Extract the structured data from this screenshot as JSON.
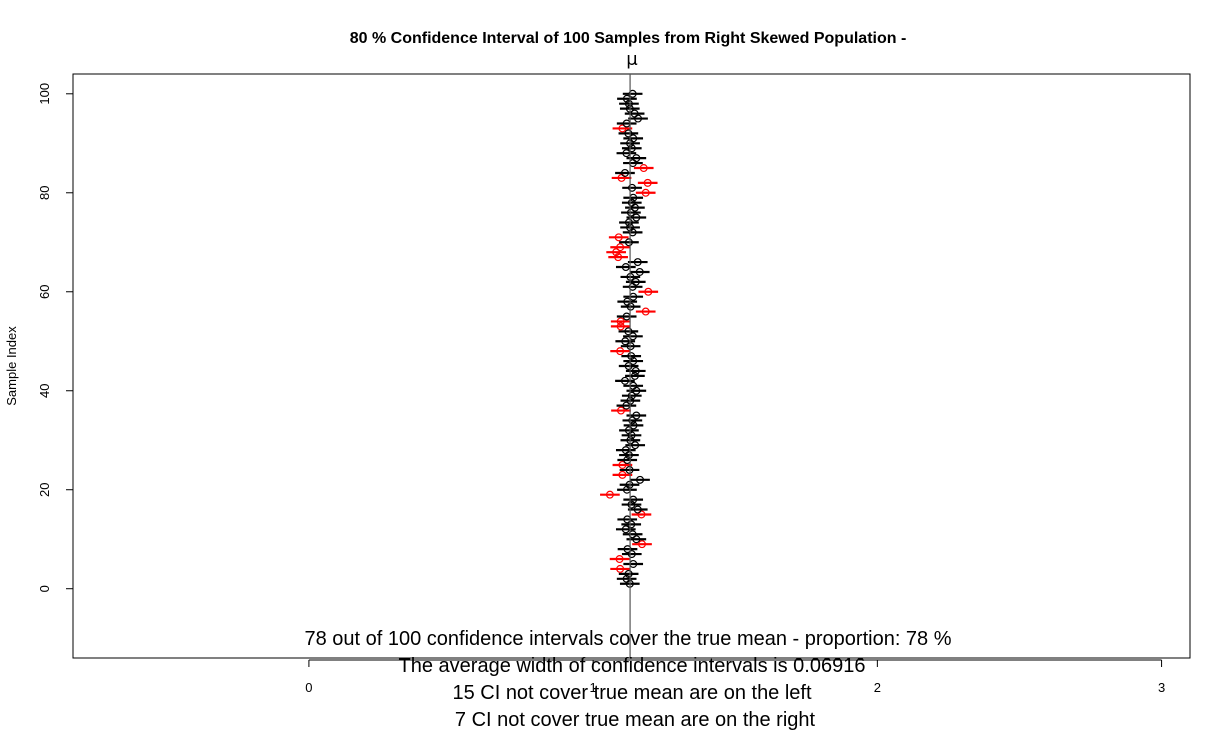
{
  "chart_data": {
    "type": "scatter",
    "title": "80 % Confidence Interval of 100  Samples from Right Skewed Population -",
    "title_symbol": "μ",
    "ylabel": "Sample Index",
    "xlabel": "",
    "true_mean": 1.13,
    "xlim": [
      -0.83,
      3.1
    ],
    "ylim": [
      -14,
      104
    ],
    "x_ticks": [
      "0",
      "1",
      "2",
      "3"
    ],
    "y_ticks": [
      "0",
      "20",
      "40",
      "60",
      "80",
      "100"
    ],
    "grid": false,
    "colors": {
      "covers": "#000000",
      "misses": "#ff0000",
      "true_mean_line": "#555555"
    },
    "annotations": [
      "78 out of 100 confidence intervals cover the true mean - proportion: 78 %",
      "The average width of confidence intervals is 0.06916",
      "15 CI not cover true mean are on the left",
      "7 CI not cover true mean are on the right"
    ],
    "intervals": [
      {
        "index": 1,
        "mean": 1.129,
        "covers": true
      },
      {
        "index": 2,
        "mean": 1.118,
        "covers": true
      },
      {
        "index": 3,
        "mean": 1.125,
        "covers": true
      },
      {
        "index": 4,
        "mean": 1.095,
        "covers": false
      },
      {
        "index": 5,
        "mean": 1.141,
        "covers": true
      },
      {
        "index": 6,
        "mean": 1.093,
        "covers": false
      },
      {
        "index": 7,
        "mean": 1.136,
        "covers": true
      },
      {
        "index": 8,
        "mean": 1.121,
        "covers": true
      },
      {
        "index": 9,
        "mean": 1.172,
        "covers": false
      },
      {
        "index": 10,
        "mean": 1.152,
        "covers": true
      },
      {
        "index": 11,
        "mean": 1.139,
        "covers": true
      },
      {
        "index": 12,
        "mean": 1.115,
        "covers": true
      },
      {
        "index": 13,
        "mean": 1.134,
        "covers": true
      },
      {
        "index": 14,
        "mean": 1.12,
        "covers": true
      },
      {
        "index": 15,
        "mean": 1.17,
        "covers": false
      },
      {
        "index": 16,
        "mean": 1.157,
        "covers": true
      },
      {
        "index": 17,
        "mean": 1.135,
        "covers": true
      },
      {
        "index": 18,
        "mean": 1.141,
        "covers": true
      },
      {
        "index": 19,
        "mean": 1.059,
        "covers": false
      },
      {
        "index": 20,
        "mean": 1.119,
        "covers": true
      },
      {
        "index": 21,
        "mean": 1.128,
        "covers": true
      },
      {
        "index": 22,
        "mean": 1.165,
        "covers": true
      },
      {
        "index": 23,
        "mean": 1.103,
        "covers": false
      },
      {
        "index": 24,
        "mean": 1.128,
        "covers": true
      },
      {
        "index": 25,
        "mean": 1.103,
        "covers": false
      },
      {
        "index": 26,
        "mean": 1.12,
        "covers": true
      },
      {
        "index": 27,
        "mean": 1.126,
        "covers": true
      },
      {
        "index": 28,
        "mean": 1.115,
        "covers": true
      },
      {
        "index": 29,
        "mean": 1.148,
        "covers": true
      },
      {
        "index": 30,
        "mean": 1.131,
        "covers": true
      },
      {
        "index": 31,
        "mean": 1.135,
        "covers": true
      },
      {
        "index": 32,
        "mean": 1.126,
        "covers": true
      },
      {
        "index": 33,
        "mean": 1.142,
        "covers": true
      },
      {
        "index": 34,
        "mean": 1.138,
        "covers": true
      },
      {
        "index": 35,
        "mean": 1.152,
        "covers": true
      },
      {
        "index": 36,
        "mean": 1.098,
        "covers": false
      },
      {
        "index": 37,
        "mean": 1.117,
        "covers": true
      },
      {
        "index": 38,
        "mean": 1.131,
        "covers": true
      },
      {
        "index": 39,
        "mean": 1.136,
        "covers": true
      },
      {
        "index": 40,
        "mean": 1.152,
        "covers": true
      },
      {
        "index": 41,
        "mean": 1.141,
        "covers": true
      },
      {
        "index": 42,
        "mean": 1.112,
        "covers": true
      },
      {
        "index": 43,
        "mean": 1.147,
        "covers": true
      },
      {
        "index": 44,
        "mean": 1.15,
        "covers": true
      },
      {
        "index": 45,
        "mean": 1.125,
        "covers": true
      },
      {
        "index": 46,
        "mean": 1.141,
        "covers": true
      },
      {
        "index": 47,
        "mean": 1.134,
        "covers": true
      },
      {
        "index": 48,
        "mean": 1.095,
        "covers": false
      },
      {
        "index": 49,
        "mean": 1.132,
        "covers": true
      },
      {
        "index": 50,
        "mean": 1.113,
        "covers": true
      },
      {
        "index": 51,
        "mean": 1.14,
        "covers": true
      },
      {
        "index": 52,
        "mean": 1.124,
        "covers": true
      },
      {
        "index": 53,
        "mean": 1.097,
        "covers": false
      },
      {
        "index": 54,
        "mean": 1.097,
        "covers": false
      },
      {
        "index": 55,
        "mean": 1.118,
        "covers": true
      },
      {
        "index": 56,
        "mean": 1.185,
        "covers": false
      },
      {
        "index": 57,
        "mean": 1.132,
        "covers": true
      },
      {
        "index": 58,
        "mean": 1.12,
        "covers": true
      },
      {
        "index": 59,
        "mean": 1.141,
        "covers": true
      },
      {
        "index": 60,
        "mean": 1.194,
        "covers": false
      },
      {
        "index": 61,
        "mean": 1.139,
        "covers": true
      },
      {
        "index": 62,
        "mean": 1.15,
        "covers": true
      },
      {
        "index": 63,
        "mean": 1.131,
        "covers": true
      },
      {
        "index": 64,
        "mean": 1.164,
        "covers": true
      },
      {
        "index": 65,
        "mean": 1.115,
        "covers": true
      },
      {
        "index": 66,
        "mean": 1.157,
        "covers": true
      },
      {
        "index": 67,
        "mean": 1.088,
        "covers": false
      },
      {
        "index": 68,
        "mean": 1.081,
        "covers": false
      },
      {
        "index": 69,
        "mean": 1.095,
        "covers": false
      },
      {
        "index": 70,
        "mean": 1.126,
        "covers": true
      },
      {
        "index": 71,
        "mean": 1.09,
        "covers": false
      },
      {
        "index": 72,
        "mean": 1.139,
        "covers": true
      },
      {
        "index": 73,
        "mean": 1.13,
        "covers": true
      },
      {
        "index": 74,
        "mean": 1.126,
        "covers": true
      },
      {
        "index": 75,
        "mean": 1.152,
        "covers": true
      },
      {
        "index": 76,
        "mean": 1.133,
        "covers": true
      },
      {
        "index": 77,
        "mean": 1.147,
        "covers": true
      },
      {
        "index": 78,
        "mean": 1.136,
        "covers": true
      },
      {
        "index": 79,
        "mean": 1.141,
        "covers": true
      },
      {
        "index": 80,
        "mean": 1.185,
        "covers": false
      },
      {
        "index": 81,
        "mean": 1.137,
        "covers": true
      },
      {
        "index": 82,
        "mean": 1.192,
        "covers": false
      },
      {
        "index": 83,
        "mean": 1.1,
        "covers": false
      },
      {
        "index": 84,
        "mean": 1.112,
        "covers": true
      },
      {
        "index": 85,
        "mean": 1.178,
        "covers": false
      },
      {
        "index": 86,
        "mean": 1.14,
        "covers": true
      },
      {
        "index": 87,
        "mean": 1.152,
        "covers": true
      },
      {
        "index": 88,
        "mean": 1.117,
        "covers": true
      },
      {
        "index": 89,
        "mean": 1.136,
        "covers": true
      },
      {
        "index": 90,
        "mean": 1.13,
        "covers": true
      },
      {
        "index": 91,
        "mean": 1.141,
        "covers": true
      },
      {
        "index": 92,
        "mean": 1.124,
        "covers": true
      },
      {
        "index": 93,
        "mean": 1.103,
        "covers": false
      },
      {
        "index": 94,
        "mean": 1.118,
        "covers": true
      },
      {
        "index": 95,
        "mean": 1.158,
        "covers": true
      },
      {
        "index": 96,
        "mean": 1.146,
        "covers": true
      },
      {
        "index": 97,
        "mean": 1.129,
        "covers": true
      },
      {
        "index": 98,
        "mean": 1.126,
        "covers": true
      },
      {
        "index": 99,
        "mean": 1.119,
        "covers": true
      },
      {
        "index": 100,
        "mean": 1.139,
        "covers": true
      }
    ]
  }
}
